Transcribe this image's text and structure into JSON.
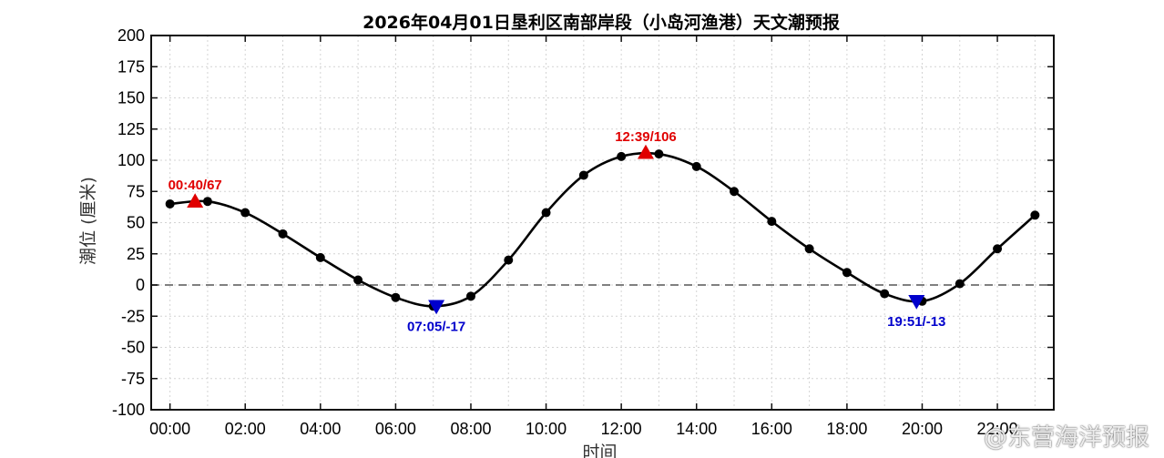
{
  "chart_data": {
    "type": "line",
    "title": "2026年04月01日垦利区南部岸段（小岛河渔港）天文潮预报",
    "xlabel": "时间",
    "ylabel": "潮位 (厘米)",
    "xlim": [
      -0.5,
      23.5
    ],
    "ylim": [
      -100,
      200
    ],
    "yticks": [
      -100,
      -75,
      -50,
      -25,
      0,
      25,
      50,
      75,
      100,
      125,
      150,
      175,
      200
    ],
    "xticks": [
      0,
      2,
      4,
      6,
      8,
      10,
      12,
      14,
      16,
      18,
      20,
      22
    ],
    "xtick_labels": [
      "00:00",
      "02:00",
      "04:00",
      "06:00",
      "08:00",
      "10:00",
      "12:00",
      "14:00",
      "16:00",
      "18:00",
      "20:00",
      "22:00"
    ],
    "grid": true,
    "reference_line": 0,
    "series": [
      {
        "name": "",
        "x": [
          0,
          1,
          2,
          3,
          4,
          5,
          6,
          7,
          8,
          9,
          10,
          11,
          12,
          13,
          14,
          15,
          16,
          17,
          18,
          19,
          20,
          21,
          22,
          23
        ],
        "values": [
          65,
          67,
          58,
          41,
          22,
          4,
          -10,
          -17,
          -9,
          20,
          58,
          88,
          103,
          105,
          95,
          75,
          51,
          29,
          10,
          -7,
          -13,
          1,
          29,
          56
        ]
      }
    ],
    "extremes": [
      {
        "kind": "high",
        "x": 0.667,
        "y": 67,
        "label": "00:40/67"
      },
      {
        "kind": "low",
        "x": 7.083,
        "y": -17,
        "label": "07:05/-17"
      },
      {
        "kind": "high",
        "x": 12.65,
        "y": 106,
        "label": "12:39/106"
      },
      {
        "kind": "low",
        "x": 19.85,
        "y": -13,
        "label": "19:51/-13"
      }
    ],
    "colors": {
      "line": "#000000",
      "high": "#e00000",
      "low": "#0000cc",
      "zero_line": "#808080",
      "grid": "#d4d4d4"
    }
  },
  "watermark": "@东营海洋预报"
}
